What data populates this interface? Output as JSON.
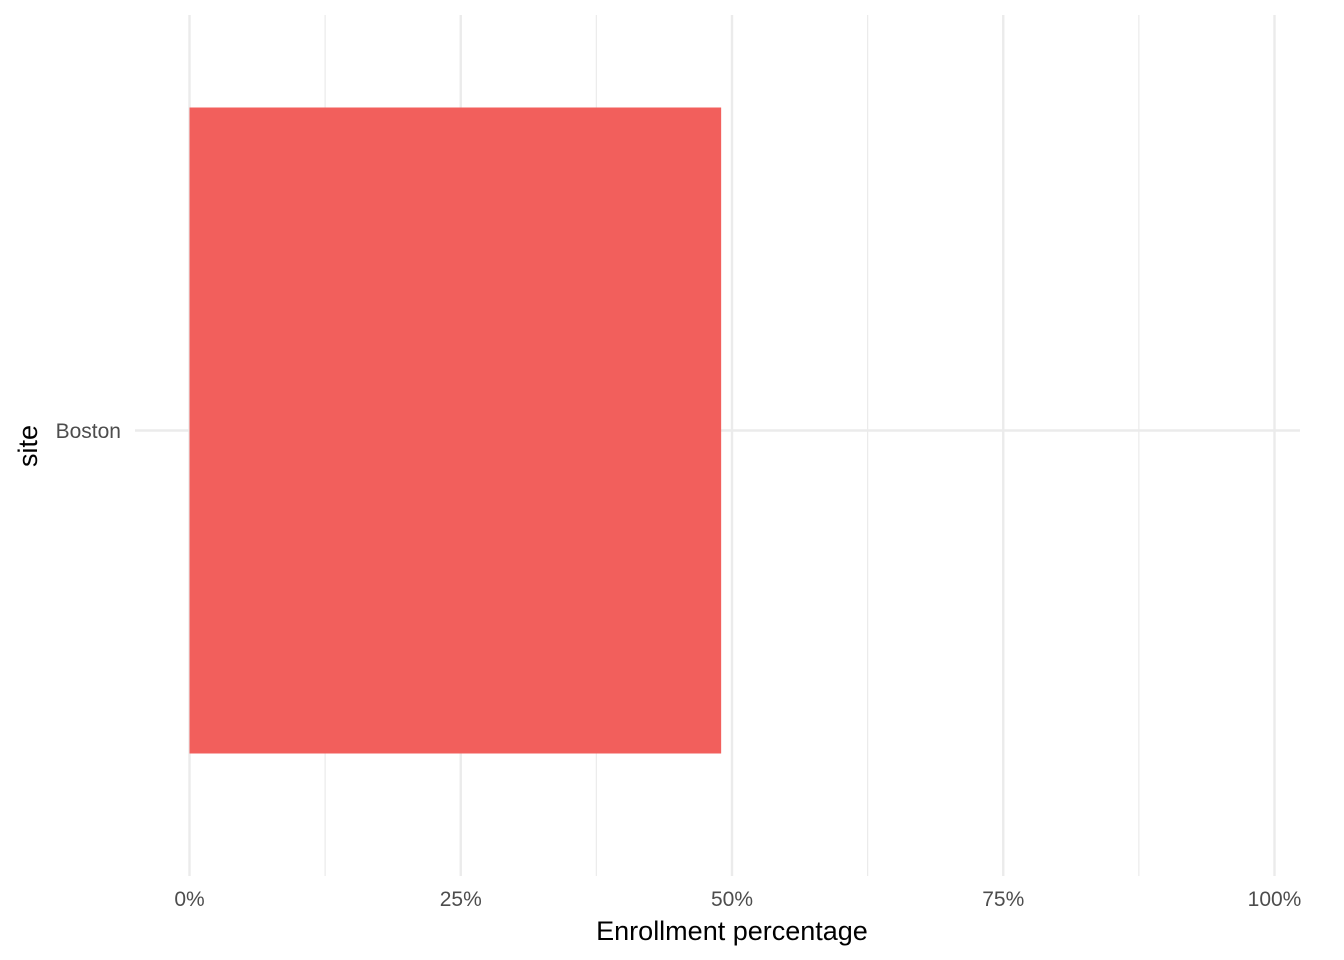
{
  "chart_data": {
    "type": "bar",
    "orientation": "horizontal",
    "categories": [
      "Boston"
    ],
    "values": [
      0.49
    ],
    "xlabel": "Enrollment percentage",
    "ylabel": "site",
    "xlim": [
      0,
      1
    ],
    "x_ticks": [
      0,
      0.25,
      0.5,
      0.75,
      1
    ],
    "x_tick_labels": [
      "0%",
      "25%",
      "50%",
      "75%",
      "100%"
    ],
    "grid": true,
    "legend": "none",
    "colors": {
      "bar": "#F25F5C",
      "grid_major": "#ebebeb",
      "grid_minor": "#ebebeb",
      "tick_text": "#4d4d4d",
      "title_text": "#000000"
    }
  }
}
